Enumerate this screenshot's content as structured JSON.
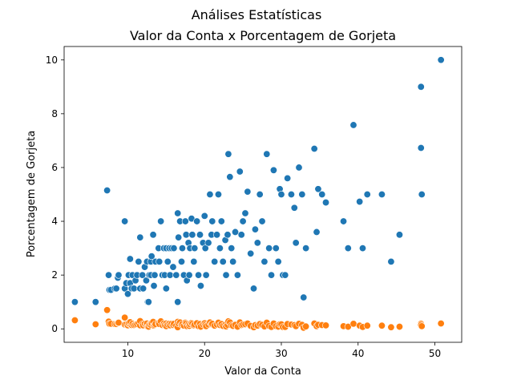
{
  "figure": {
    "suptitle": "Análises Estatísticas"
  },
  "chart_data": {
    "type": "scatter",
    "title": "Valor da Conta x Porcentagem de Gorjeta",
    "xlabel": "Valor da Conta",
    "ylabel": "Porcentagem de Gorjeta",
    "xlim": [
      1.7,
      53.5
    ],
    "ylim": [
      -0.5,
      10.5
    ],
    "xticks": [
      10,
      20,
      30,
      40,
      50
    ],
    "yticks": [
      0,
      2,
      4,
      6,
      8,
      10
    ],
    "grid": false,
    "series": [
      {
        "color": "#1f77b4",
        "points": [
          [
            3.1,
            1.0
          ],
          [
            5.8,
            1.0
          ],
          [
            7.3,
            5.15
          ],
          [
            7.5,
            2.0
          ],
          [
            7.6,
            1.45
          ],
          [
            7.8,
            1.45
          ],
          [
            8.3,
            1.5
          ],
          [
            8.5,
            1.5
          ],
          [
            8.7,
            1.9
          ],
          [
            8.8,
            2.0
          ],
          [
            9.6,
            4.0
          ],
          [
            9.6,
            1.5
          ],
          [
            9.8,
            1.7
          ],
          [
            10.0,
            1.3
          ],
          [
            10.1,
            2.0
          ],
          [
            10.3,
            1.7
          ],
          [
            10.3,
            2.6
          ],
          [
            10.5,
            1.5
          ],
          [
            10.6,
            2.0
          ],
          [
            10.8,
            1.5
          ],
          [
            11.0,
            1.8
          ],
          [
            11.2,
            2.0
          ],
          [
            11.4,
            2.5
          ],
          [
            11.6,
            1.5
          ],
          [
            11.6,
            3.4
          ],
          [
            11.9,
            2.0
          ],
          [
            12.0,
            1.5
          ],
          [
            12.2,
            2.3
          ],
          [
            12.4,
            1.8
          ],
          [
            12.5,
            2.5
          ],
          [
            12.6,
            1.0
          ],
          [
            12.7,
            1.0
          ],
          [
            12.8,
            2.0
          ],
          [
            13.0,
            2.5
          ],
          [
            13.0,
            2.0
          ],
          [
            13.1,
            2.7
          ],
          [
            13.3,
            3.5
          ],
          [
            13.4,
            1.6
          ],
          [
            13.5,
            2.0
          ],
          [
            13.6,
            2.5
          ],
          [
            14.0,
            3.0
          ],
          [
            14.1,
            2.5
          ],
          [
            14.3,
            4.0
          ],
          [
            14.5,
            2.0
          ],
          [
            14.7,
            3.0
          ],
          [
            14.8,
            2.0
          ],
          [
            15.0,
            3.0
          ],
          [
            15.0,
            1.5
          ],
          [
            15.2,
            2.5
          ],
          [
            15.4,
            3.0
          ],
          [
            15.5,
            2.0
          ],
          [
            15.7,
            3.0
          ],
          [
            15.9,
            2.3
          ],
          [
            16.0,
            3.0
          ],
          [
            16.3,
            2.0
          ],
          [
            16.5,
            4.3
          ],
          [
            16.5,
            1.0
          ],
          [
            16.6,
            3.4
          ],
          [
            16.8,
            4.0
          ],
          [
            17.0,
            2.5
          ],
          [
            17.1,
            3.0
          ],
          [
            17.3,
            2.0
          ],
          [
            17.5,
            4.0
          ],
          [
            17.6,
            3.5
          ],
          [
            17.7,
            1.8
          ],
          [
            17.9,
            3.2
          ],
          [
            18.0,
            2.0
          ],
          [
            18.1,
            3.0
          ],
          [
            18.3,
            4.1
          ],
          [
            18.4,
            3.5
          ],
          [
            18.6,
            2.5
          ],
          [
            18.7,
            3.0
          ],
          [
            19.0,
            4.0
          ],
          [
            19.2,
            2.0
          ],
          [
            19.4,
            3.5
          ],
          [
            19.5,
            1.6
          ],
          [
            19.8,
            3.2
          ],
          [
            20.0,
            4.2
          ],
          [
            20.1,
            3.0
          ],
          [
            20.2,
            2.0
          ],
          [
            20.5,
            3.2
          ],
          [
            20.7,
            5.0
          ],
          [
            20.9,
            3.5
          ],
          [
            21.0,
            4.0
          ],
          [
            21.3,
            2.5
          ],
          [
            21.6,
            3.5
          ],
          [
            21.8,
            5.0
          ],
          [
            22.0,
            3.0
          ],
          [
            22.2,
            4.0
          ],
          [
            22.4,
            2.5
          ],
          [
            22.7,
            3.3
          ],
          [
            22.8,
            2.0
          ],
          [
            23.0,
            3.5
          ],
          [
            23.1,
            6.5
          ],
          [
            23.3,
            5.65
          ],
          [
            23.5,
            3.0
          ],
          [
            23.7,
            2.5
          ],
          [
            24.0,
            3.6
          ],
          [
            24.3,
            2.0
          ],
          [
            24.6,
            5.85
          ],
          [
            24.8,
            3.5
          ],
          [
            25.0,
            4.0
          ],
          [
            25.3,
            4.3
          ],
          [
            25.6,
            5.1
          ],
          [
            26.0,
            2.8
          ],
          [
            26.4,
            1.5
          ],
          [
            26.6,
            3.7
          ],
          [
            26.9,
            3.2
          ],
          [
            27.2,
            5.0
          ],
          [
            27.5,
            4.0
          ],
          [
            27.8,
            2.5
          ],
          [
            28.1,
            6.5
          ],
          [
            28.4,
            3.0
          ],
          [
            28.7,
            2.0
          ],
          [
            29.0,
            5.9
          ],
          [
            29.3,
            3.0
          ],
          [
            29.6,
            2.5
          ],
          [
            29.8,
            5.2
          ],
          [
            30.0,
            5.0
          ],
          [
            30.2,
            2.0
          ],
          [
            30.5,
            2.0
          ],
          [
            30.8,
            5.6
          ],
          [
            31.3,
            5.0
          ],
          [
            31.7,
            4.5
          ],
          [
            31.9,
            3.2
          ],
          [
            32.3,
            6.0
          ],
          [
            32.7,
            5.0
          ],
          [
            32.9,
            1.17
          ],
          [
            33.2,
            3.0
          ],
          [
            34.3,
            6.7
          ],
          [
            34.6,
            3.6
          ],
          [
            34.8,
            5.2
          ],
          [
            35.3,
            5.0
          ],
          [
            35.8,
            4.7
          ],
          [
            38.1,
            4.0
          ],
          [
            38.7,
            3.0
          ],
          [
            39.4,
            7.58
          ],
          [
            40.2,
            4.73
          ],
          [
            40.6,
            3.0
          ],
          [
            41.2,
            5.0
          ],
          [
            43.1,
            5.0
          ],
          [
            44.3,
            2.5
          ],
          [
            45.4,
            3.5
          ],
          [
            48.2,
            9.0
          ],
          [
            48.2,
            6.73
          ],
          [
            48.3,
            5.0
          ],
          [
            50.8,
            10.0
          ]
        ]
      },
      {
        "color": "#ff7f0e",
        "points": [
          [
            3.1,
            0.32
          ],
          [
            5.8,
            0.17
          ],
          [
            7.3,
            0.7
          ],
          [
            7.5,
            0.27
          ],
          [
            7.6,
            0.19
          ],
          [
            7.8,
            0.19
          ],
          [
            8.3,
            0.18
          ],
          [
            8.5,
            0.18
          ],
          [
            8.7,
            0.22
          ],
          [
            8.8,
            0.23
          ],
          [
            9.6,
            0.42
          ],
          [
            9.6,
            0.16
          ],
          [
            9.8,
            0.17
          ],
          [
            10.0,
            0.13
          ],
          [
            10.1,
            0.2
          ],
          [
            10.3,
            0.17
          ],
          [
            10.3,
            0.25
          ],
          [
            10.5,
            0.14
          ],
          [
            10.6,
            0.19
          ],
          [
            10.8,
            0.14
          ],
          [
            11.0,
            0.16
          ],
          [
            11.2,
            0.18
          ],
          [
            11.4,
            0.22
          ],
          [
            11.6,
            0.13
          ],
          [
            11.6,
            0.29
          ],
          [
            11.9,
            0.17
          ],
          [
            12.0,
            0.13
          ],
          [
            12.2,
            0.19
          ],
          [
            12.4,
            0.15
          ],
          [
            12.5,
            0.2
          ],
          [
            12.6,
            0.08
          ],
          [
            12.7,
            0.08
          ],
          [
            12.8,
            0.16
          ],
          [
            13.0,
            0.19
          ],
          [
            13.0,
            0.15
          ],
          [
            13.1,
            0.21
          ],
          [
            13.3,
            0.26
          ],
          [
            13.4,
            0.12
          ],
          [
            13.5,
            0.15
          ],
          [
            13.6,
            0.18
          ],
          [
            14.0,
            0.21
          ],
          [
            14.1,
            0.18
          ],
          [
            14.3,
            0.28
          ],
          [
            14.5,
            0.14
          ],
          [
            14.7,
            0.2
          ],
          [
            14.8,
            0.14
          ],
          [
            15.0,
            0.2
          ],
          [
            15.0,
            0.1
          ],
          [
            15.2,
            0.16
          ],
          [
            15.4,
            0.19
          ],
          [
            15.5,
            0.13
          ],
          [
            15.7,
            0.19
          ],
          [
            15.9,
            0.14
          ],
          [
            16.0,
            0.19
          ],
          [
            16.3,
            0.12
          ],
          [
            16.5,
            0.26
          ],
          [
            16.5,
            0.06
          ],
          [
            16.6,
            0.2
          ],
          [
            16.8,
            0.24
          ],
          [
            17.0,
            0.15
          ],
          [
            17.1,
            0.18
          ],
          [
            17.3,
            0.12
          ],
          [
            17.5,
            0.23
          ],
          [
            17.6,
            0.2
          ],
          [
            17.7,
            0.1
          ],
          [
            17.9,
            0.18
          ],
          [
            18.0,
            0.11
          ],
          [
            18.1,
            0.17
          ],
          [
            18.3,
            0.22
          ],
          [
            18.4,
            0.19
          ],
          [
            18.6,
            0.13
          ],
          [
            18.7,
            0.16
          ],
          [
            19.0,
            0.21
          ],
          [
            19.2,
            0.1
          ],
          [
            19.4,
            0.18
          ],
          [
            19.5,
            0.08
          ],
          [
            19.8,
            0.16
          ],
          [
            20.0,
            0.21
          ],
          [
            20.1,
            0.15
          ],
          [
            20.2,
            0.1
          ],
          [
            20.5,
            0.16
          ],
          [
            20.7,
            0.24
          ],
          [
            20.9,
            0.17
          ],
          [
            21.0,
            0.19
          ],
          [
            21.3,
            0.12
          ],
          [
            21.6,
            0.16
          ],
          [
            21.8,
            0.23
          ],
          [
            22.0,
            0.14
          ],
          [
            22.2,
            0.18
          ],
          [
            22.4,
            0.11
          ],
          [
            22.7,
            0.15
          ],
          [
            22.8,
            0.09
          ],
          [
            23.0,
            0.15
          ],
          [
            23.1,
            0.28
          ],
          [
            23.3,
            0.24
          ],
          [
            23.5,
            0.13
          ],
          [
            23.7,
            0.11
          ],
          [
            24.0,
            0.15
          ],
          [
            24.3,
            0.08
          ],
          [
            24.6,
            0.24
          ],
          [
            24.8,
            0.14
          ],
          [
            25.0,
            0.16
          ],
          [
            25.3,
            0.17
          ],
          [
            25.6,
            0.2
          ],
          [
            26.0,
            0.11
          ],
          [
            26.4,
            0.06
          ],
          [
            26.6,
            0.14
          ],
          [
            26.9,
            0.12
          ],
          [
            27.2,
            0.18
          ],
          [
            27.5,
            0.15
          ],
          [
            27.8,
            0.09
          ],
          [
            28.1,
            0.23
          ],
          [
            28.4,
            0.11
          ],
          [
            28.7,
            0.07
          ],
          [
            29.0,
            0.2
          ],
          [
            29.3,
            0.1
          ],
          [
            29.6,
            0.08
          ],
          [
            29.8,
            0.17
          ],
          [
            30.0,
            0.17
          ],
          [
            30.2,
            0.07
          ],
          [
            30.5,
            0.07
          ],
          [
            30.8,
            0.18
          ],
          [
            31.3,
            0.16
          ],
          [
            31.7,
            0.14
          ],
          [
            31.9,
            0.1
          ],
          [
            32.3,
            0.19
          ],
          [
            32.7,
            0.15
          ],
          [
            32.9,
            0.04
          ],
          [
            33.2,
            0.09
          ],
          [
            34.3,
            0.2
          ],
          [
            34.6,
            0.1
          ],
          [
            34.8,
            0.15
          ],
          [
            35.3,
            0.14
          ],
          [
            35.8,
            0.13
          ],
          [
            38.1,
            0.1
          ],
          [
            38.7,
            0.08
          ],
          [
            39.4,
            0.19
          ],
          [
            40.2,
            0.12
          ],
          [
            40.6,
            0.07
          ],
          [
            41.2,
            0.12
          ],
          [
            43.1,
            0.12
          ],
          [
            44.3,
            0.06
          ],
          [
            45.4,
            0.08
          ],
          [
            48.2,
            0.19
          ],
          [
            48.2,
            0.14
          ],
          [
            48.3,
            0.1
          ],
          [
            50.8,
            0.2
          ]
        ]
      }
    ]
  }
}
